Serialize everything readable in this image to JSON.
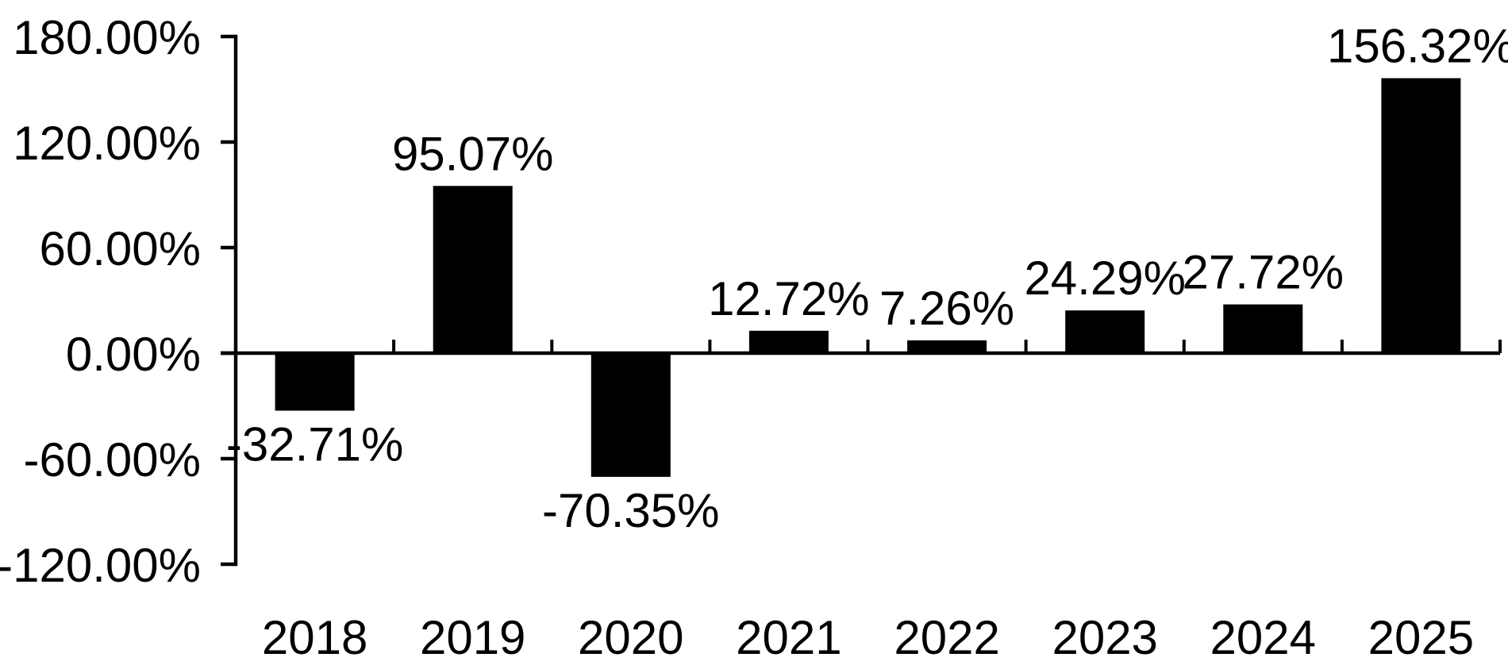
{
  "chart_data": {
    "type": "bar",
    "title": "",
    "xlabel": "",
    "ylabel": "",
    "categories": [
      "2018",
      "2019",
      "2020",
      "2021",
      "2022",
      "2023",
      "2024",
      "2025"
    ],
    "series": [
      {
        "name": "annual-return-percent",
        "values": [
          -32.71,
          95.07,
          -70.35,
          12.72,
          7.26,
          24.29,
          27.72,
          156.32
        ]
      }
    ],
    "value_labels": [
      "-32.71%",
      "95.07%",
      "-70.35%",
      "12.72%",
      "7.26%",
      "24.29%",
      "27.72%",
      "156.32%"
    ],
    "y_axis": {
      "ticks": [
        {
          "value": 180,
          "label": "180.00%"
        },
        {
          "value": 120,
          "label": "120.00%"
        },
        {
          "value": 60,
          "label": "60.00%"
        },
        {
          "value": 0,
          "label": "0.00%"
        },
        {
          "value": -60,
          "label": "-60.00%"
        },
        {
          "value": -120,
          "label": "-120.00%"
        }
      ],
      "ylim": [
        -120,
        180
      ]
    },
    "grid": false,
    "legend_position": "none",
    "colors": {
      "bar": "#000000",
      "axis": "#000000",
      "text": "#000000",
      "background": "#ffffff"
    }
  }
}
